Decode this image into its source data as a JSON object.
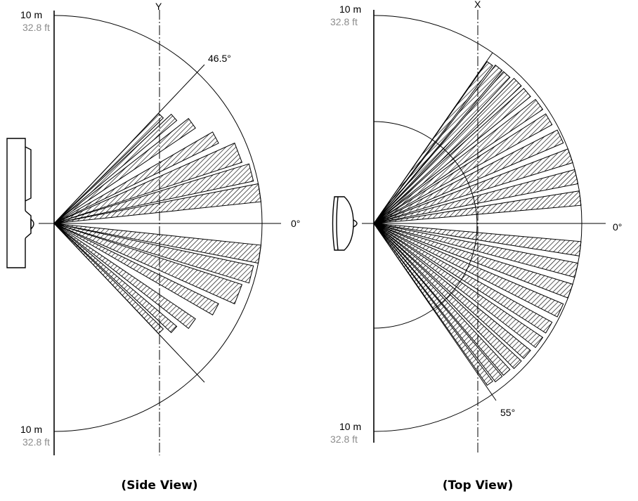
{
  "side_view": {
    "caption": "(Side View)",
    "axis_label": "Y",
    "top_range_m": "10 m",
    "top_range_ft": "32.8 ft",
    "bottom_range_m": "10 m",
    "bottom_range_ft": "32.8 ft",
    "zero_label": "0°",
    "angle_label": "46.5°",
    "half_angle_deg": 46.5,
    "radius_m": 10
  },
  "top_view": {
    "caption": "(Top View)",
    "axis_label": "X",
    "top_range_m": "10 m",
    "top_range_ft": "32.8 ft",
    "bottom_range_m": "10 m",
    "bottom_range_ft": "32.8 ft",
    "zero_label": "0°",
    "angle_label": "55°",
    "half_angle_deg": 55,
    "radius_m": 10
  },
  "colors": {
    "line": "#000000",
    "range_secondary": "#8c8c8c"
  }
}
